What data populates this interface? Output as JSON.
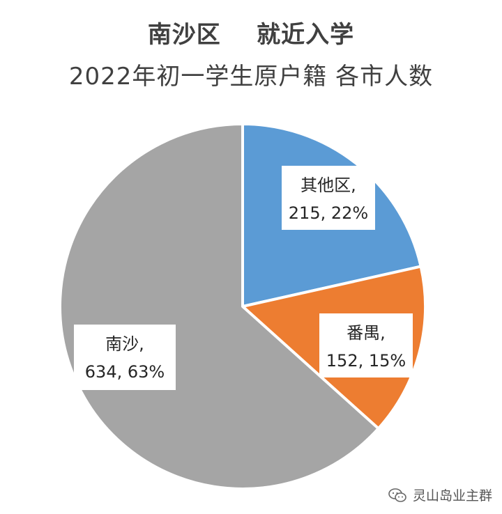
{
  "title": {
    "line1": "南沙区    就近入学",
    "line2": "2022年初一学生原户籍 各市人数"
  },
  "chart_data": {
    "type": "pie",
    "title": "南沙区    就近入学 2022年初一学生原户籍 各市人数",
    "start_angle_deg": 0,
    "direction": "clockwise",
    "slices": [
      {
        "name": "其他区",
        "value": 215,
        "percent": "22%",
        "label_name": "其他区,",
        "label_value": "215, 22%",
        "color": "#5b9bd5"
      },
      {
        "name": "番禺",
        "value": 152,
        "percent": "15%",
        "label_name": "番禺,",
        "label_value": "152, 15%",
        "color": "#ed7d31"
      },
      {
        "name": "南沙",
        "value": 634,
        "percent": "63%",
        "label_name": "南沙,",
        "label_value": "634, 63%",
        "color": "#a5a5a5"
      }
    ],
    "legend": "none"
  },
  "watermark": {
    "icon": "wechat-icon",
    "text": "灵山岛业主群"
  }
}
